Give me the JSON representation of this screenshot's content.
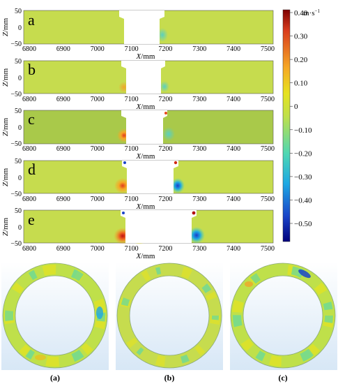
{
  "colors": {
    "field": "#c6dc4e",
    "field_alt": "#a9c94a",
    "colorbar_stops": [
      "#7e0000",
      "#d93d1e",
      "#f6a825",
      "#e6e21f",
      "#bfe04a",
      "#4fd7b3",
      "#1ea8e3",
      "#1a44c8",
      "#00007c"
    ]
  },
  "colorbar": {
    "unit_main": "m·s",
    "unit_exp": "−1",
    "ticks": [
      "0.40",
      "0.30",
      "0.20",
      "0.10",
      "0",
      "−0.10",
      "−0.20",
      "−0.30",
      "−0.40",
      "−0.50"
    ]
  },
  "panels": [
    {
      "letter": "a"
    },
    {
      "letter": "b"
    },
    {
      "letter": "c"
    },
    {
      "letter": "d"
    },
    {
      "letter": "e"
    }
  ],
  "x_axis": {
    "ticks": [
      "6800",
      "6900",
      "7000",
      "7100",
      "7200",
      "7300",
      "7400",
      "7500"
    ],
    "title": "X",
    "unit": "/mm"
  },
  "z_axis": {
    "ticks": [
      "50",
      "0",
      "−50"
    ],
    "title": "Z",
    "unit": "/mm"
  },
  "ring_captions": [
    "(a)",
    "(b)",
    "(c)"
  ]
}
